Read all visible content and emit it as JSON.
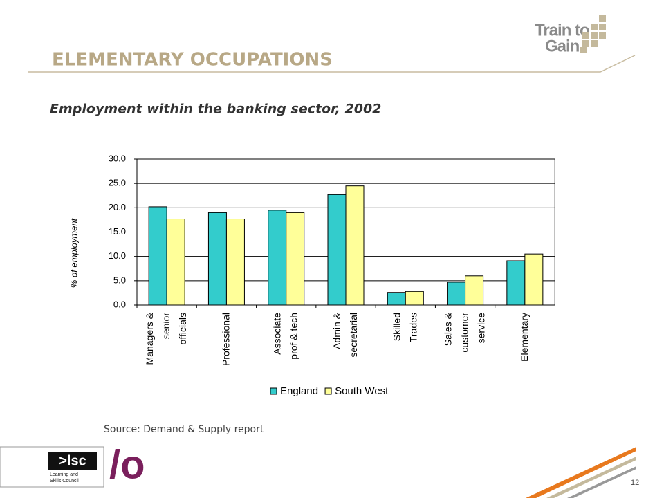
{
  "slide_title": "ELEMENTARY OCCUPATIONS",
  "logo_top": [
    "Train to",
    "Gain"
  ],
  "logo_lsc": {
    "mark": ">lsc",
    "name": [
      "Learning and",
      "Skills Council"
    ]
  },
  "logo_o": "/o",
  "source": "Source: Demand & Supply report",
  "page_number": "12",
  "chart_data": {
    "type": "bar",
    "title": "Employment within the banking sector, 2002",
    "y_label": "% of employment",
    "categories": [
      "Managers &\nsenior\nofficials",
      "Professional",
      "Associate\nprof & tech",
      "Admin &\nsecretarial",
      "Skilled\nTrades",
      "Sales &\ncustomer\nservice",
      "Elementary"
    ],
    "series": [
      {
        "name": "England",
        "color": "#33cccc",
        "values": [
          20.2,
          19.0,
          19.5,
          22.7,
          2.6,
          4.7,
          9.1
        ]
      },
      {
        "name": "South West",
        "color": "#ffff99",
        "values": [
          17.7,
          17.7,
          19.0,
          24.5,
          2.8,
          6.0,
          10.5
        ]
      }
    ],
    "ylim": [
      0,
      30
    ],
    "yticks": [
      {
        "value": 0,
        "label": "0.0"
      },
      {
        "value": 5,
        "label": "5.0"
      },
      {
        "value": 10,
        "label": "10.0"
      },
      {
        "value": 15,
        "label": "15.0"
      },
      {
        "value": 20,
        "label": "20.0"
      },
      {
        "value": 25,
        "label": "25.0"
      },
      {
        "value": 30,
        "label": "30.0"
      }
    ],
    "grid": true,
    "legend": "bottom"
  }
}
